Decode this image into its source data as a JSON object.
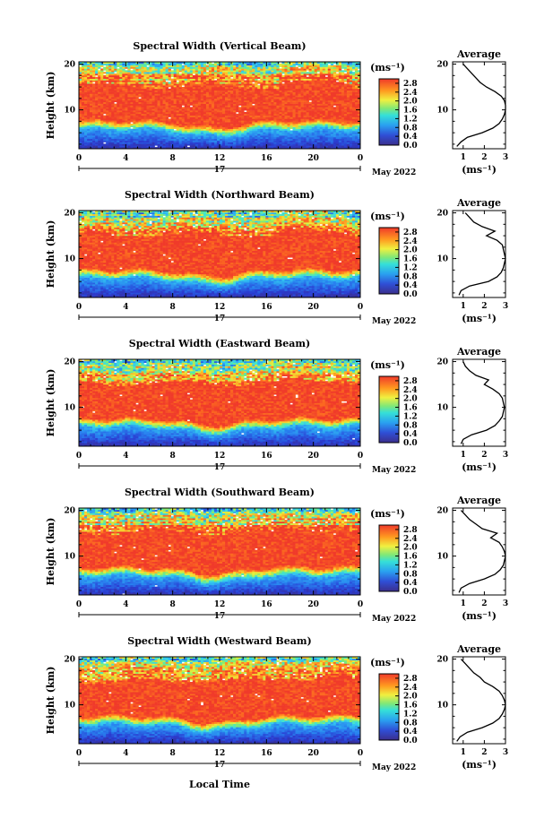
{
  "figure": {
    "x_axis_label": "Local Time",
    "date_label": "May 2022",
    "day_label": "17",
    "avg_title": "Average",
    "y_label": "Height (km)",
    "unit_label": "(ms⁻¹)",
    "avg_x_label": "(ms⁻¹)"
  },
  "chart_data": [
    {
      "type": "heatmap",
      "title": "Spectral Width (Vertical Beam)",
      "xlabel": "Local Time",
      "ylabel": "Height (km)",
      "x_ticks": [
        "0",
        "4",
        "8",
        "12",
        "16",
        "20",
        "0"
      ],
      "y_ticks": [
        "10",
        "20"
      ],
      "xlim": [
        0,
        24
      ],
      "ylim": [
        1.5,
        20.5
      ],
      "colorbar": {
        "unit": "(ms⁻¹)",
        "ticks": [
          "0.0",
          "0.4",
          "0.8",
          "1.2",
          "1.6",
          "2.0",
          "2.4",
          "2.8"
        ],
        "range": [
          0,
          3.0
        ]
      },
      "average": {
        "title": "Average",
        "xlabel": "(ms⁻¹)",
        "x_ticks": [
          "1",
          "2",
          "3"
        ],
        "xlim": [
          0.5,
          3.0
        ],
        "y_ticks": [
          "10",
          "20"
        ],
        "height_km": [
          2,
          3,
          4,
          5,
          6,
          7,
          8,
          9,
          10,
          11,
          12,
          13,
          14,
          15,
          16,
          17,
          18,
          19,
          20
        ],
        "width": [
          0.7,
          0.9,
          1.2,
          1.9,
          2.4,
          2.7,
          2.85,
          2.95,
          3.0,
          3.0,
          2.95,
          2.8,
          2.5,
          2.1,
          1.8,
          1.6,
          1.4,
          1.2,
          1.0
        ]
      }
    },
    {
      "type": "heatmap",
      "title": "Spectral Width (Northward Beam)",
      "xlabel": "Local Time",
      "ylabel": "Height (km)",
      "x_ticks": [
        "0",
        "4",
        "8",
        "12",
        "16",
        "20",
        "0"
      ],
      "y_ticks": [
        "10",
        "20"
      ],
      "xlim": [
        0,
        24
      ],
      "ylim": [
        1.5,
        20.5
      ],
      "colorbar": {
        "unit": "(ms⁻¹)",
        "ticks": [
          "0.0",
          "0.4",
          "0.8",
          "1.2",
          "1.6",
          "2.0",
          "2.4",
          "2.8"
        ],
        "range": [
          0,
          3.0
        ]
      },
      "average": {
        "title": "Average",
        "xlabel": "(ms⁻¹)",
        "x_ticks": [
          "1",
          "2",
          "3"
        ],
        "xlim": [
          0.5,
          3.0
        ],
        "y_ticks": [
          "10",
          "20"
        ],
        "height_km": [
          2,
          3,
          4,
          5,
          6,
          7,
          8,
          9,
          10,
          11,
          12,
          13,
          14,
          15,
          16,
          17,
          18,
          19,
          20
        ],
        "width": [
          0.8,
          0.9,
          1.3,
          2.2,
          2.6,
          2.8,
          2.9,
          2.95,
          3.0,
          2.95,
          2.9,
          2.85,
          2.6,
          2.1,
          2.5,
          1.9,
          1.5,
          1.3,
          1.1
        ]
      }
    },
    {
      "type": "heatmap",
      "title": "Spectral Width (Eastward Beam)",
      "xlabel": "Local Time",
      "ylabel": "Height (km)",
      "x_ticks": [
        "0",
        "4",
        "8",
        "12",
        "16",
        "20",
        "0"
      ],
      "y_ticks": [
        "10",
        "20"
      ],
      "xlim": [
        0,
        24
      ],
      "ylim": [
        1.5,
        20.5
      ],
      "colorbar": {
        "unit": "(ms⁻¹)",
        "ticks": [
          "0.0",
          "0.4",
          "0.8",
          "1.2",
          "1.6",
          "2.0",
          "2.4",
          "2.8"
        ],
        "range": [
          0,
          3.0
        ]
      },
      "average": {
        "title": "Average",
        "xlabel": "(ms⁻¹)",
        "x_ticks": [
          "1",
          "2",
          "3"
        ],
        "xlim": [
          0.5,
          3.0
        ],
        "y_ticks": [
          "10",
          "20"
        ],
        "height_km": [
          2,
          3,
          4,
          5,
          6,
          7,
          8,
          9,
          10,
          11,
          12,
          13,
          14,
          15,
          16,
          17,
          18,
          19,
          20
        ],
        "width": [
          0.9,
          1.0,
          1.4,
          2.1,
          2.5,
          2.7,
          2.85,
          2.9,
          2.95,
          2.9,
          2.85,
          2.7,
          2.4,
          2.0,
          2.2,
          1.6,
          1.3,
          1.1,
          1.0
        ]
      }
    },
    {
      "type": "heatmap",
      "title": "Spectral Width (Southward Beam)",
      "xlabel": "Local Time",
      "ylabel": "Height (km)",
      "x_ticks": [
        "0",
        "4",
        "8",
        "12",
        "16",
        "20",
        "0"
      ],
      "y_ticks": [
        "10",
        "20"
      ],
      "xlim": [
        0,
        24
      ],
      "ylim": [
        1.5,
        20.5
      ],
      "colorbar": {
        "unit": "(ms⁻¹)",
        "ticks": [
          "0.0",
          "0.4",
          "0.8",
          "1.2",
          "1.6",
          "2.0",
          "2.4",
          "2.8"
        ],
        "range": [
          0,
          3.0
        ]
      },
      "average": {
        "title": "Average",
        "xlabel": "(ms⁻¹)",
        "x_ticks": [
          "1",
          "2",
          "3"
        ],
        "xlim": [
          0.5,
          3.0
        ],
        "y_ticks": [
          "10",
          "20"
        ],
        "height_km": [
          2,
          3,
          4,
          5,
          6,
          7,
          8,
          9,
          10,
          11,
          12,
          13,
          14,
          15,
          16,
          17,
          18,
          19,
          20
        ],
        "width": [
          0.8,
          0.9,
          1.3,
          2.0,
          2.5,
          2.75,
          2.9,
          2.95,
          3.0,
          2.95,
          2.85,
          2.7,
          2.3,
          2.6,
          1.9,
          1.6,
          1.3,
          1.1,
          0.9
        ]
      }
    },
    {
      "type": "heatmap",
      "title": "Spectral Width (Westward Beam)",
      "xlabel": "Local Time",
      "ylabel": "Height (km)",
      "x_ticks": [
        "0",
        "4",
        "8",
        "12",
        "16",
        "20",
        "0"
      ],
      "y_ticks": [
        "10",
        "20"
      ],
      "xlim": [
        0,
        24
      ],
      "ylim": [
        1.5,
        20.5
      ],
      "colorbar": {
        "unit": "(ms⁻¹)",
        "ticks": [
          "0.0",
          "0.4",
          "0.8",
          "1.2",
          "1.6",
          "2.0",
          "2.4",
          "2.8"
        ],
        "range": [
          0,
          3.0
        ]
      },
      "average": {
        "title": "Average",
        "xlabel": "(ms⁻¹)",
        "x_ticks": [
          "1",
          "2",
          "3"
        ],
        "xlim": [
          0.5,
          3.0
        ],
        "y_ticks": [
          "10",
          "20"
        ],
        "height_km": [
          2,
          3,
          4,
          5,
          6,
          7,
          8,
          9,
          10,
          11,
          12,
          13,
          14,
          15,
          16,
          17,
          18,
          19,
          20
        ],
        "width": [
          0.7,
          0.85,
          1.2,
          1.9,
          2.4,
          2.7,
          2.85,
          2.95,
          3.0,
          2.95,
          2.85,
          2.7,
          2.4,
          2.0,
          1.8,
          1.5,
          1.3,
          1.1,
          0.9
        ]
      }
    }
  ]
}
